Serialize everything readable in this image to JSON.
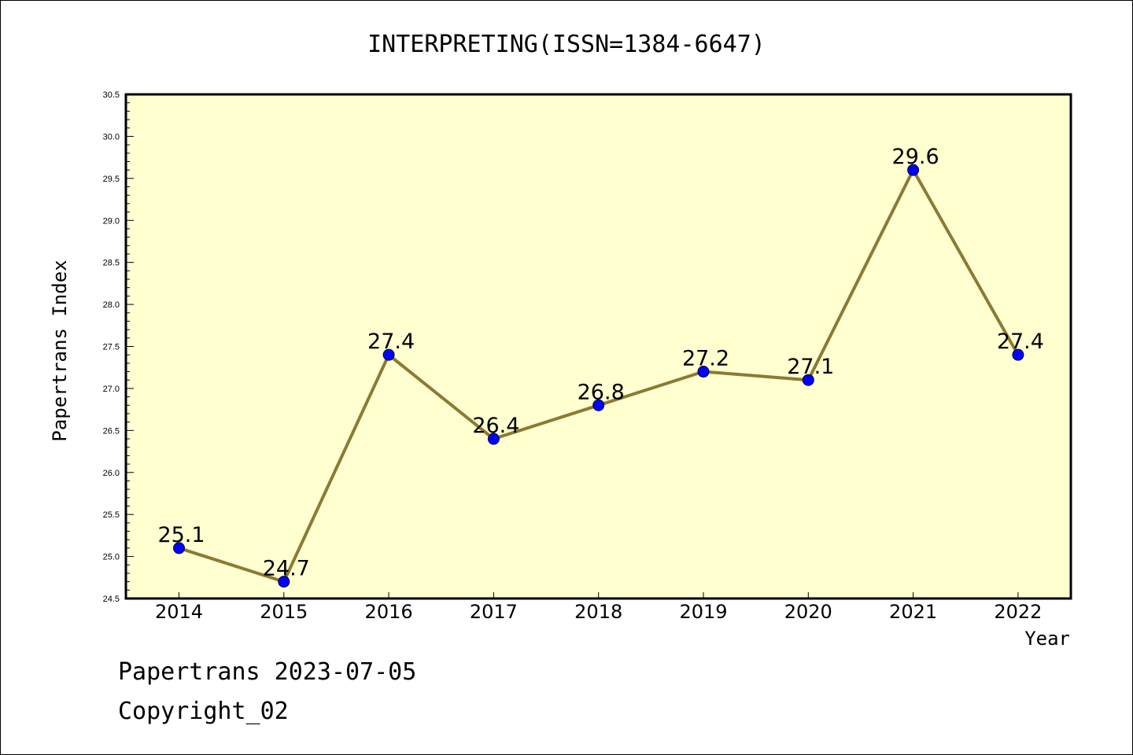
{
  "chart_data": {
    "type": "line",
    "title": "INTERPRETING(ISSN=1384-6647)",
    "xlabel": "Year",
    "ylabel": "Papertrans Index",
    "categories": [
      "2014",
      "2015",
      "2016",
      "2017",
      "2018",
      "2019",
      "2020",
      "2021",
      "2022"
    ],
    "values": [
      25.1,
      24.7,
      27.4,
      26.4,
      26.8,
      27.2,
      27.1,
      29.6,
      27.4
    ],
    "data_labels": [
      "25.1",
      "24.7",
      "27.4",
      "26.4",
      "26.8",
      "27.2",
      "27.1",
      "29.6",
      "27.4"
    ],
    "ylim": [
      24.5,
      30.5
    ],
    "yticks": [
      "24.5",
      "25.0",
      "25.5",
      "26.0",
      "26.5",
      "27.0",
      "27.5",
      "28.0",
      "28.5",
      "29.0",
      "29.5",
      "30.0",
      "30.5"
    ],
    "grid": false,
    "legend": "none",
    "colors": {
      "plot_background": "#ffffd0",
      "line": "#8b7a35",
      "marker": "#0000ff"
    }
  },
  "footer": {
    "line1": "Papertrans 2023-07-05",
    "line2": "Copyright_02"
  }
}
